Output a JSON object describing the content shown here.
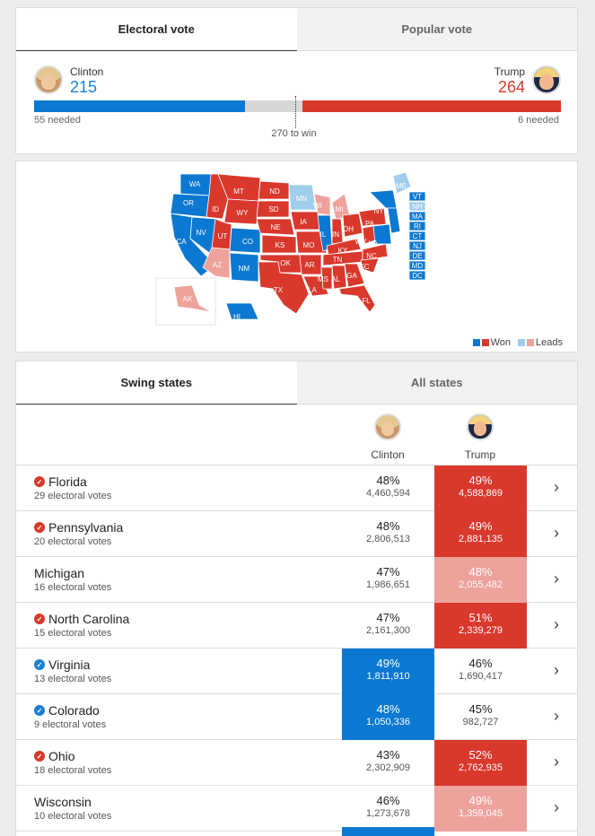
{
  "vote_tabs": {
    "electoral": "Electoral vote",
    "popular": "Popular vote"
  },
  "clinton": {
    "name": "Clinton",
    "electoral": "215",
    "needed": "55 needed"
  },
  "trump": {
    "name": "Trump",
    "electoral": "264",
    "needed": "6 needed"
  },
  "progress": {
    "total": 538,
    "clinton": 215,
    "trump": 264
  },
  "win_label": "270 to win",
  "colors": {
    "dem": "#0b78d1",
    "gop": "#d9382c",
    "dem_lead": "#9fcdec",
    "gop_lead": "#eea29c"
  },
  "map": {
    "labels": {
      "WA": "WA",
      "OR": "OR",
      "CA": "CA",
      "NV": "NV",
      "ID": "ID",
      "MT": "MT",
      "WY": "WY",
      "UT": "UT",
      "AZ": "AZ",
      "CO": "CO",
      "NM": "NM",
      "ND": "ND",
      "SD": "SD",
      "NE": "NE",
      "KS": "KS",
      "OK": "OK",
      "TX": "TX",
      "MN": "MN",
      "IA": "IA",
      "MO": "MO",
      "AR": "AR",
      "LA": "LA",
      "WI": "WI",
      "IL": "IL",
      "MS": "MS",
      "MI": "MI",
      "IN": "IN",
      "KY": "KY",
      "TN": "TN",
      "AL": "AL",
      "OH": "OH",
      "GA": "GA",
      "FL": "FL",
      "PA": "PA",
      "NY": "NY",
      "WV": "WV",
      "VA": "VA",
      "NC": "NC",
      "SC": "SC",
      "ME": "ME",
      "AK": "AK",
      "HI": "HI",
      "VT": "VT",
      "NH": "NH",
      "MA": "MA",
      "RI": "RI",
      "CT": "CT",
      "NJ": "NJ",
      "DE": "DE",
      "MD": "MD",
      "DC": "DC"
    },
    "legend_won": "Won",
    "legend_leads": "Leads"
  },
  "state_tabs": {
    "swing": "Swing states",
    "all": "All states"
  },
  "table_header": {
    "clinton": "Clinton",
    "trump": "Trump"
  },
  "rows": [
    {
      "state": "Florida",
      "ev": "29 electoral votes",
      "c_pct": "48%",
      "c_votes": "4,460,594",
      "t_pct": "49%",
      "t_votes": "4,588,869"
    },
    {
      "state": "Pennsylvania",
      "ev": "20 electoral votes",
      "c_pct": "48%",
      "c_votes": "2,806,513",
      "t_pct": "49%",
      "t_votes": "2,881,135"
    },
    {
      "state": "Michigan",
      "ev": "16 electoral votes",
      "c_pct": "47%",
      "c_votes": "1,986,651",
      "t_pct": "48%",
      "t_votes": "2,055,482"
    },
    {
      "state": "North Carolina",
      "ev": "15 electoral votes",
      "c_pct": "47%",
      "c_votes": "2,161,300",
      "t_pct": "51%",
      "t_votes": "2,339,279"
    },
    {
      "state": "Virginia",
      "ev": "13 electoral votes",
      "c_pct": "49%",
      "c_votes": "1,811,910",
      "t_pct": "46%",
      "t_votes": "1,690,417"
    },
    {
      "state": "Colorado",
      "ev": "9 electoral votes",
      "c_pct": "48%",
      "c_votes": "1,050,336",
      "t_pct": "45%",
      "t_votes": "982,727"
    },
    {
      "state": "Ohio",
      "ev": "18 electoral votes",
      "c_pct": "43%",
      "c_votes": "2,302,909",
      "t_pct": "52%",
      "t_votes": "2,762,935"
    },
    {
      "state": "Wisconsin",
      "ev": "10 electoral votes",
      "c_pct": "46%",
      "c_votes": "1,273,678",
      "t_pct": "49%",
      "t_votes": "1,359,045"
    }
  ]
}
